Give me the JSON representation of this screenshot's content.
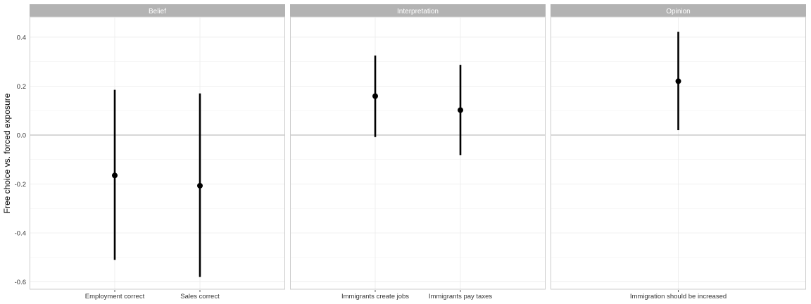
{
  "chart_data": {
    "type": "scatter",
    "ylabel": "Free choice vs. forced exposure",
    "xlabel": "",
    "ylim": [
      -0.63,
      0.48
    ],
    "yticks": [
      -0.6,
      -0.4,
      -0.2,
      0.0,
      0.2,
      0.4
    ],
    "ytick_labels": [
      "-0.6",
      "-0.4",
      "-0.2",
      "0.0",
      "0.2",
      "0.4"
    ],
    "reference_line": 0,
    "grid": true,
    "marker_color": "#000000",
    "panels": [
      {
        "title": "Belief",
        "categories": [
          "Employment correct",
          "Sales correct"
        ],
        "estimates": [
          -0.165,
          -0.207
        ],
        "lower": [
          -0.51,
          -0.58
        ],
        "upper": [
          0.185,
          0.17
        ]
      },
      {
        "title": "Interpretation",
        "categories": [
          "Immigrants create jobs",
          "Immigrants pay taxes"
        ],
        "estimates": [
          0.159,
          0.102
        ],
        "lower": [
          -0.008,
          -0.082
        ],
        "upper": [
          0.325,
          0.287
        ]
      },
      {
        "title": "Opinion",
        "categories": [
          "Immigration should be increased"
        ],
        "estimates": [
          0.22
        ],
        "lower": [
          0.02
        ],
        "upper": [
          0.422
        ]
      }
    ]
  }
}
